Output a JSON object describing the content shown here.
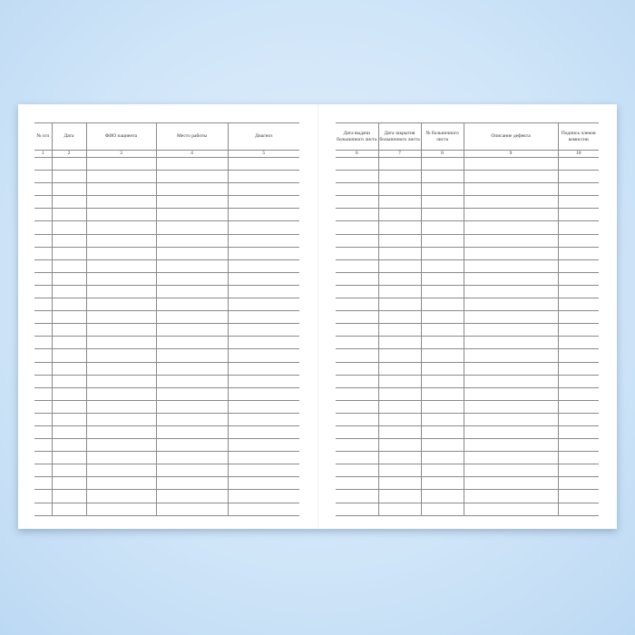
{
  "left_page": {
    "headers": [
      "№ п/п",
      "Дата",
      "ФИО пациента",
      "Место работы",
      "Диагноз"
    ],
    "numbers": [
      "1",
      "2",
      "3",
      "4",
      "5"
    ]
  },
  "right_page": {
    "headers": [
      "Дата выдачи больничного листа",
      "Дата закрытия больничного листа",
      "№ больничного листа",
      "Описание дефекта",
      "Подпись членов комиссии"
    ],
    "numbers": [
      "6",
      "7",
      "8",
      "9",
      "10"
    ]
  }
}
